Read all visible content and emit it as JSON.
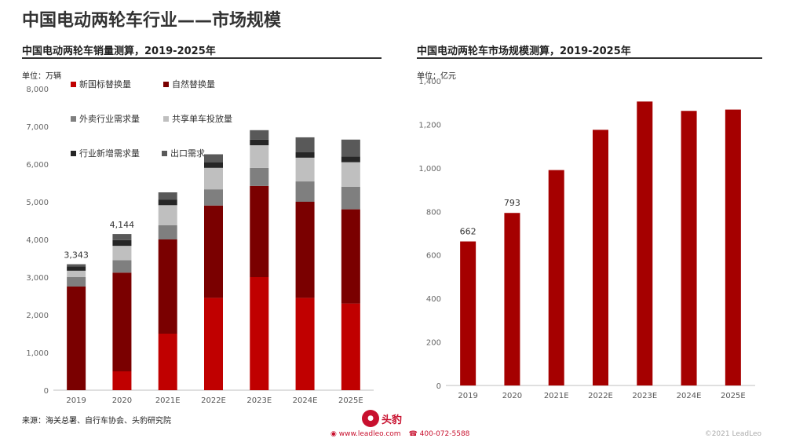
{
  "page": {
    "title": "中国电动两轮车行业——市场规模",
    "source": "来源：海关总署、自行车协会、头豹研究院",
    "logo_text": "头豹",
    "website": "www.leadleo.com",
    "phone": "400-072-5588",
    "copyright": "©2021 LeadLeo"
  },
  "colors": {
    "dark_red": "#7a0000",
    "red": "#c00000",
    "dark_gray": "#7f7f7f",
    "light_gray": "#bfbfbf",
    "black": "#262626",
    "charcoal": "#595959"
  },
  "chart_data": [
    {
      "type": "bar",
      "stacked": true,
      "title": "中国电动两轮车销量测算，2019-2025年",
      "unit": "单位：万辆",
      "categories": [
        "2019",
        "2020",
        "2021E",
        "2022E",
        "2023E",
        "2024E",
        "2025E"
      ],
      "ylim": [
        0,
        8000
      ],
      "yticks": [
        "0",
        "1,000",
        "2,000",
        "3,000",
        "4,000",
        "5,000",
        "6,000",
        "7,000",
        "8,000"
      ],
      "ytick_values": [
        0,
        1000,
        2000,
        3000,
        4000,
        5000,
        6000,
        7000,
        8000
      ],
      "legend_position": "top",
      "series": [
        {
          "name": "新国标替换量",
          "color": "#c00000",
          "values": [
            0,
            500,
            1500,
            2450,
            3000,
            2450,
            2300
          ]
        },
        {
          "name": "自然替换量",
          "color": "#7a0000",
          "values": [
            2750,
            2620,
            2500,
            2450,
            2420,
            2550,
            2500
          ]
        },
        {
          "name": "外卖行业需求量",
          "color": "#7f7f7f",
          "values": [
            250,
            330,
            380,
            430,
            480,
            540,
            600
          ]
        },
        {
          "name": "共享单车投放量",
          "color": "#bfbfbf",
          "values": [
            170,
            380,
            530,
            570,
            600,
            630,
            650
          ]
        },
        {
          "name": "行业新增需求量",
          "color": "#262626",
          "values": [
            113,
            154,
            150,
            150,
            150,
            150,
            150
          ]
        },
        {
          "name": "出口需求",
          "color": "#595959",
          "values": [
            60,
            160,
            190,
            210,
            250,
            390,
            450
          ]
        }
      ],
      "totals": [
        3343,
        4144,
        5250,
        6260,
        6900,
        6710,
        6650
      ],
      "total_labels": [
        "3,343",
        "4,144",
        "",
        "",
        "",
        "",
        ""
      ]
    },
    {
      "type": "bar",
      "title": "中国电动两轮车市场规模测算，2019-2025年",
      "unit": "单位：亿元",
      "categories": [
        "2019",
        "2020",
        "2021E",
        "2022E",
        "2023E",
        "2024E",
        "2025E"
      ],
      "values": [
        662,
        793,
        990,
        1175,
        1305,
        1262,
        1268
      ],
      "data_labels": [
        "662",
        "793",
        "",
        "",
        "",
        "",
        ""
      ],
      "color": "#a50000",
      "ylim": [
        0,
        1400
      ],
      "yticks": [
        "0",
        "200",
        "400",
        "600",
        "800",
        "1,000",
        "1,200",
        "1,400"
      ],
      "ytick_values": [
        0,
        200,
        400,
        600,
        800,
        1000,
        1200,
        1400
      ]
    }
  ]
}
